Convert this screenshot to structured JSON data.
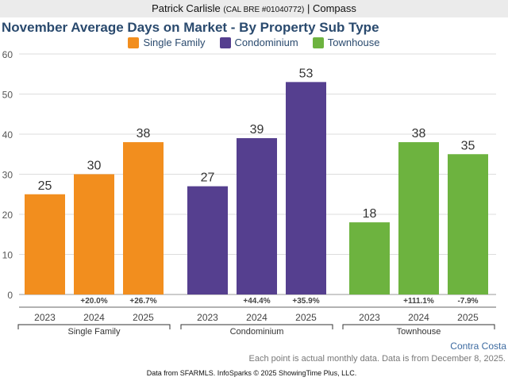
{
  "header": {
    "name": "Patrick Carlisle",
    "license": "(CAL BRE #01040772)",
    "separator": "|",
    "company": "Compass"
  },
  "chart_data": {
    "type": "bar",
    "title": "November Average Days on Market - By Property Sub Type",
    "ylim": [
      0,
      60
    ],
    "yticks": [
      0,
      10,
      20,
      30,
      40,
      50,
      60
    ],
    "grid": true,
    "legend_position": "top-center",
    "groups": [
      {
        "name": "Single Family",
        "color": "#f28e1e",
        "years": [
          "2023",
          "2024",
          "2025"
        ],
        "values": [
          25,
          30,
          38
        ],
        "changes": [
          "",
          "+20.0%",
          "+26.7%"
        ]
      },
      {
        "name": "Condominium",
        "color": "#553f8f",
        "years": [
          "2023",
          "2024",
          "2025"
        ],
        "values": [
          27,
          39,
          53
        ],
        "changes": [
          "",
          "+44.4%",
          "+35.9%"
        ]
      },
      {
        "name": "Townhouse",
        "color": "#6db33f",
        "years": [
          "2023",
          "2024",
          "2025"
        ],
        "values": [
          18,
          38,
          35
        ],
        "changes": [
          "",
          "+111.1%",
          "-7.9%"
        ]
      }
    ]
  },
  "footer": {
    "region": "Contra Costa",
    "note": "Each point is actual monthly data. Data is from December 8, 2025.",
    "source": "Data from SFARMLS. InfoSparks © 2025 ShowingTime Plus, LLC."
  }
}
